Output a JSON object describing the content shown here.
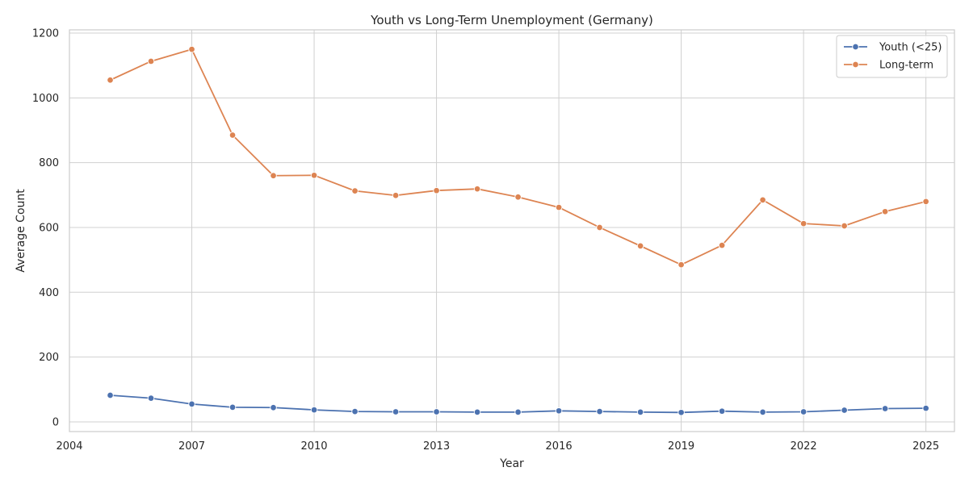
{
  "chart_data": {
    "type": "line",
    "title": "Youth vs Long-Term Unemployment (Germany)",
    "xlabel": "Year",
    "ylabel": "Average Count",
    "xlim": [
      2004,
      2025.7
    ],
    "ylim": [
      -30,
      1210
    ],
    "xticks": [
      2004,
      2007,
      2010,
      2013,
      2016,
      2019,
      2022,
      2025
    ],
    "yticks": [
      0,
      200,
      400,
      600,
      800,
      1000,
      1200
    ],
    "grid": true,
    "legend_position": "top-right",
    "series": [
      {
        "name": "Youth (<25)",
        "color": "#4c72b0",
        "marker": "circle",
        "x": [
          2005,
          2006,
          2007,
          2008,
          2009,
          2010,
          2011,
          2012,
          2013,
          2014,
          2015,
          2016,
          2017,
          2018,
          2019,
          2020,
          2021,
          2022,
          2023,
          2024,
          2025
        ],
        "y": [
          82,
          73,
          55,
          45,
          44,
          37,
          32,
          31,
          31,
          30,
          30,
          34,
          32,
          30,
          29,
          33,
          30,
          31,
          36,
          41,
          42
        ]
      },
      {
        "name": "Long-term",
        "color": "#dd8452",
        "marker": "circle",
        "x": [
          2005,
          2006,
          2007,
          2008,
          2009,
          2010,
          2011,
          2012,
          2013,
          2014,
          2015,
          2016,
          2017,
          2018,
          2019,
          2020,
          2021,
          2022,
          2023,
          2024,
          2025
        ],
        "y": [
          1055,
          1113,
          1150,
          885,
          760,
          761,
          713,
          699,
          714,
          719,
          694,
          662,
          600,
          543,
          485,
          545,
          685,
          612,
          605,
          649,
          680
        ]
      }
    ]
  }
}
